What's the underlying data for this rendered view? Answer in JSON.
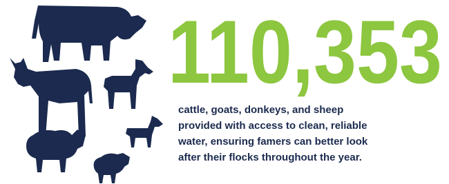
{
  "stat": {
    "value": "110,353",
    "description": [
      "cattle, goats, donkeys, and sheep",
      "provided with access to clean, reliable",
      "water, ensuring famers can better look",
      "after their flocks throughout the year."
    ]
  }
}
